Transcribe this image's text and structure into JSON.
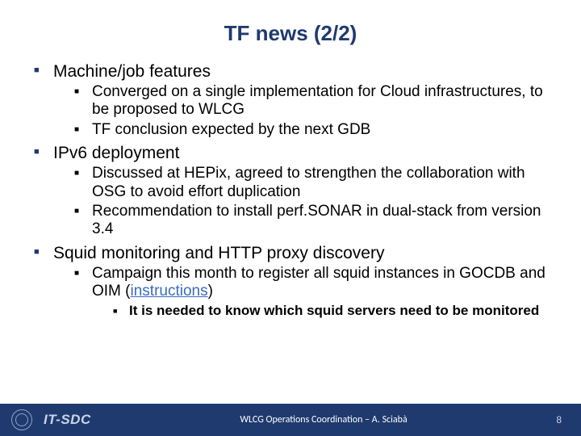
{
  "title": "TF news (2/2)",
  "colors": {
    "accent": "#1f3a6e",
    "link": "#3a6bbf",
    "footer_text_dim": "#c9d4e8",
    "footer_text": "#ffffff",
    "body_text": "#000000",
    "background": "#ffffff"
  },
  "typography": {
    "title_pt": 26,
    "l1_pt": 21,
    "l2_pt": 19,
    "l3_pt": 17,
    "footer_center_pt": 12,
    "footer_itsdc_pt": 17
  },
  "bullets": {
    "items": [
      {
        "label": "Machine/job features",
        "children": [
          {
            "label": "Converged on a single implementation for Cloud infrastructures, to be proposed to WLCG"
          },
          {
            "label": "TF conclusion expected by the next GDB"
          }
        ]
      },
      {
        "label": "IPv6 deployment",
        "children": [
          {
            "label": "Discussed at HEPix, agreed to strengthen the collaboration with OSG to avoid effort duplication"
          },
          {
            "label": "Recommendation to install perf.SONAR in dual-stack from version 3.4"
          }
        ]
      },
      {
        "label": "Squid monitoring and HTTP proxy discovery",
        "children": [
          {
            "label_pre": "Campaign this month to register all squid instances in GOCDB and OIM (",
            "link_text": "instructions",
            "label_post": ")",
            "children": [
              {
                "label": "It is needed to know which squid servers need to be monitored"
              }
            ]
          }
        ]
      }
    ]
  },
  "footer": {
    "org": "IT-SDC",
    "center": "WLCG Operations Coordination – A. Sciabà",
    "page": "8",
    "logo_name": "cern-logo"
  }
}
